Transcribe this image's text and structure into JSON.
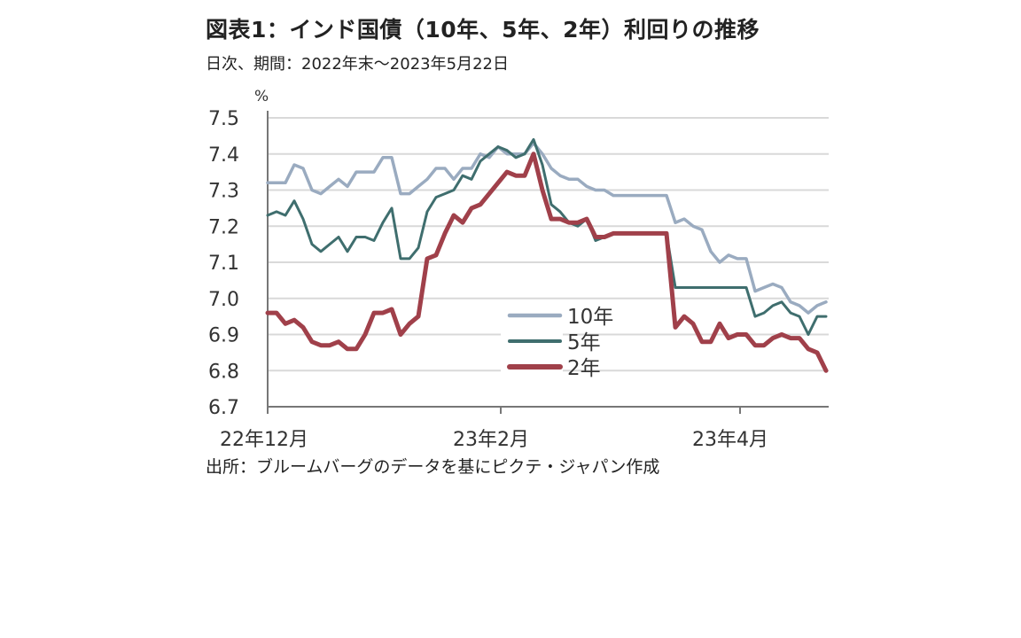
{
  "title": "図表1：インド国債（10年、5年、2年）利回りの推移",
  "subtitle": "日次、期間：2022年末～2023年5月22日",
  "source": "出所：ブルームバーグのデータを基にピクテ・ジャパン作成",
  "chart_data": {
    "type": "line",
    "ylabel": "%",
    "ylim": [
      6.7,
      7.5
    ],
    "yticks": [
      "7.5",
      "7.4",
      "7.3",
      "7.2",
      "7.1",
      "7.0",
      "6.9",
      "6.8",
      "6.7"
    ],
    "xticks": [
      {
        "label": "22年12月",
        "index": 0
      },
      {
        "label": "23年2月",
        "index": 26.3
      },
      {
        "label": "23年4月",
        "index": 53.3
      }
    ],
    "grid": true,
    "legend_position": "center-bottom",
    "series": [
      {
        "name": "10年",
        "color": "#9aabc0",
        "values": [
          7.32,
          7.32,
          7.32,
          7.37,
          7.36,
          7.3,
          7.29,
          7.31,
          7.33,
          7.31,
          7.35,
          7.35,
          7.35,
          7.39,
          7.39,
          7.29,
          7.29,
          7.31,
          7.33,
          7.36,
          7.36,
          7.33,
          7.36,
          7.36,
          7.4,
          7.39,
          7.42,
          7.4,
          7.4,
          7.4,
          7.43,
          7.4,
          7.36,
          7.34,
          7.33,
          7.33,
          7.31,
          7.3,
          7.3,
          7.285,
          7.285,
          7.285,
          7.285,
          7.285,
          7.285,
          7.285,
          7.21,
          7.22,
          7.2,
          7.19,
          7.13,
          7.1,
          7.12,
          7.11,
          7.11,
          7.02,
          7.03,
          7.04,
          7.03,
          6.99,
          6.98,
          6.96,
          6.98,
          6.99
        ]
      },
      {
        "name": "5年",
        "color": "#3f6e6e",
        "values": [
          7.23,
          7.24,
          7.23,
          7.27,
          7.22,
          7.15,
          7.13,
          7.15,
          7.17,
          7.13,
          7.17,
          7.17,
          7.16,
          7.21,
          7.25,
          7.11,
          7.11,
          7.14,
          7.24,
          7.28,
          7.29,
          7.3,
          7.34,
          7.33,
          7.38,
          7.4,
          7.42,
          7.41,
          7.39,
          7.4,
          7.44,
          7.37,
          7.26,
          7.24,
          7.21,
          7.2,
          7.22,
          7.16,
          7.17,
          7.18,
          7.18,
          7.18,
          7.18,
          7.18,
          7.18,
          7.18,
          7.03,
          7.03,
          7.03,
          7.03,
          7.03,
          7.03,
          7.03,
          7.03,
          7.03,
          6.95,
          6.96,
          6.98,
          6.99,
          6.96,
          6.95,
          6.9,
          6.95,
          6.95
        ]
      },
      {
        "name": "2年",
        "color": "#a0404a",
        "values": [
          6.96,
          6.96,
          6.93,
          6.94,
          6.92,
          6.88,
          6.87,
          6.87,
          6.88,
          6.86,
          6.86,
          6.9,
          6.96,
          6.96,
          6.97,
          6.9,
          6.93,
          6.95,
          7.11,
          7.12,
          7.18,
          7.23,
          7.21,
          7.25,
          7.26,
          7.29,
          7.32,
          7.35,
          7.34,
          7.34,
          7.4,
          7.3,
          7.22,
          7.22,
          7.21,
          7.21,
          7.22,
          7.17,
          7.17,
          7.18,
          7.18,
          7.18,
          7.18,
          7.18,
          7.18,
          7.18,
          6.92,
          6.95,
          6.93,
          6.88,
          6.88,
          6.93,
          6.89,
          6.9,
          6.9,
          6.87,
          6.87,
          6.89,
          6.9,
          6.89,
          6.89,
          6.86,
          6.85,
          6.8
        ]
      }
    ]
  }
}
